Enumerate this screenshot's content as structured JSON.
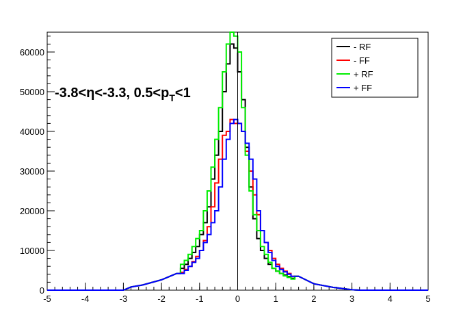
{
  "chart_data": {
    "type": "line",
    "xlim": [
      -5,
      5
    ],
    "ylim": [
      0,
      65000
    ],
    "grid": false,
    "legend_position": "top-right",
    "x_ticks": [
      "-5",
      "-4",
      "-3",
      "-2",
      "-1",
      "0",
      "1",
      "2",
      "3",
      "4",
      "5"
    ],
    "y_ticks": [
      "0",
      "10000",
      "20000",
      "30000",
      "40000",
      "50000",
      "60000"
    ],
    "annotation": {
      "prefix": "-3.8<η<-3.3, 0.5<p",
      "subscript": "T",
      "suffix": "<1"
    },
    "bin_width": 0.1,
    "bins_x_start": [
      -1.5,
      -1.4,
      -1.3,
      -1.2,
      -1.1,
      -1.0,
      -0.9,
      -0.8,
      -0.7,
      -0.6,
      -0.5,
      -0.4,
      -0.3,
      -0.2,
      -0.1,
      0.0,
      0.1,
      0.2,
      0.3,
      0.4,
      0.5,
      0.6,
      0.7,
      0.8,
      0.9,
      1.0,
      1.1,
      1.2,
      1.3,
      1.4
    ],
    "tail_points": [
      [
        -3.0,
        0
      ],
      [
        -2.8,
        800
      ],
      [
        -2.5,
        1300
      ],
      [
        -2.0,
        2600
      ],
      [
        -1.6,
        4200
      ],
      [
        -1.5,
        null
      ],
      [
        1.5,
        null
      ],
      [
        1.6,
        3500
      ],
      [
        2.0,
        1600
      ],
      [
        2.5,
        700
      ],
      [
        3.0,
        100
      ],
      [
        3.2,
        0
      ],
      [
        5.0,
        0
      ]
    ],
    "series": [
      {
        "name": "- RF",
        "color": "#000000",
        "values": [
          5500,
          6500,
          8000,
          9500,
          11000,
          14000,
          17000,
          21000,
          28000,
          34000,
          40000,
          50000,
          57000,
          62000,
          61000,
          55000,
          48000,
          36000,
          26000,
          18000,
          13000,
          10000,
          8000,
          6500,
          5500,
          4800,
          4200,
          3800,
          3400,
          3000
        ]
      },
      {
        "name": "- FF",
        "color": "#ff0000",
        "values": [
          4500,
          5200,
          6000,
          7200,
          8500,
          10000,
          12500,
          16000,
          21000,
          27000,
          33000,
          39000,
          40000,
          43000,
          42000,
          42000,
          40000,
          35000,
          30000,
          24000,
          19000,
          15000,
          12000,
          10000,
          8000,
          6500,
          5500,
          4800,
          4200,
          3500
        ]
      },
      {
        "name": "+ RF",
        "color": "#00ee00",
        "values": [
          6500,
          7500,
          9000,
          11000,
          13000,
          15000,
          20000,
          25000,
          31000,
          38000,
          46000,
          55000,
          62000,
          66000,
          64000,
          60000,
          46000,
          34000,
          25000,
          19000,
          15000,
          11000,
          9000,
          7000,
          5500,
          4800,
          4200,
          3600,
          3200,
          2800
        ]
      },
      {
        "name": "+ FF",
        "color": "#0000ff",
        "values": [
          4200,
          5000,
          6000,
          7000,
          8000,
          10000,
          12000,
          14000,
          17000,
          20000,
          26000,
          33000,
          38000,
          42000,
          43000,
          42000,
          40000,
          37000,
          33000,
          28000,
          20000,
          15000,
          12000,
          9500,
          7500,
          6000,
          5200,
          4600,
          4000,
          3500
        ]
      }
    ]
  }
}
